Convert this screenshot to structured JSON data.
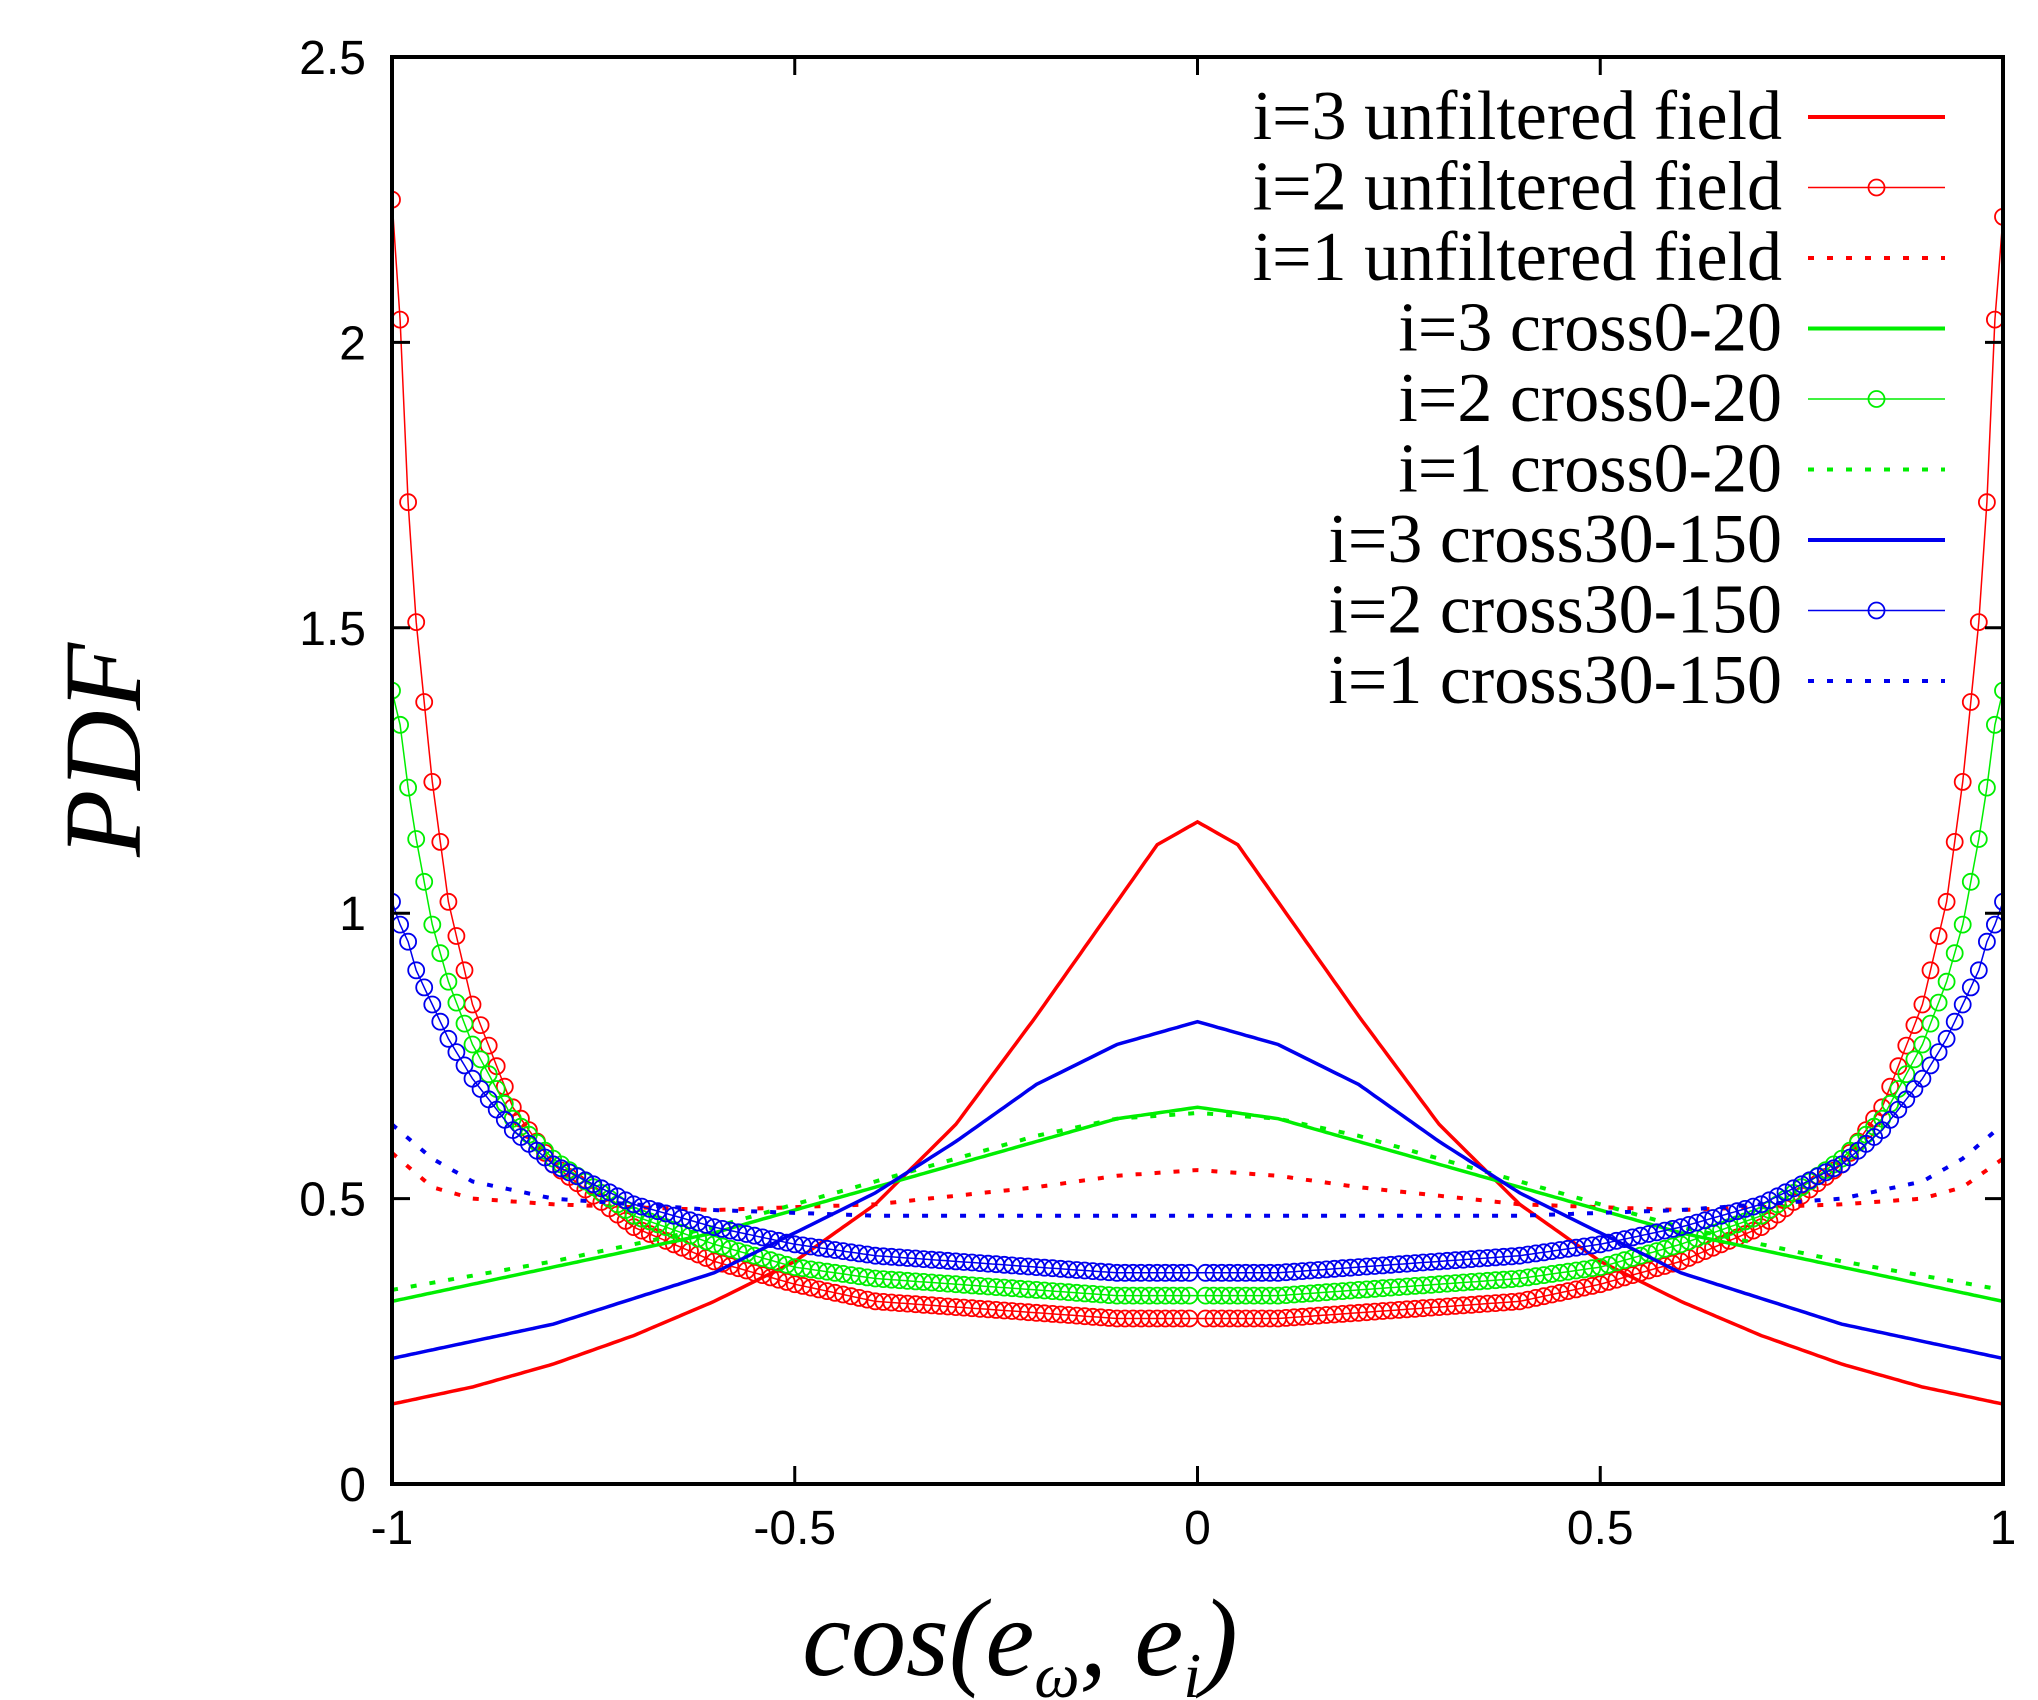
{
  "chart_data": {
    "type": "line",
    "xlabel": "cos(e_ω, e_i)",
    "xlabel_parts": {
      "main": "cos(e",
      "sub1": "ω",
      "mid": ", e",
      "sub2": "i",
      "end": ")"
    },
    "ylabel": "PDF",
    "xlim": [
      -1,
      1
    ],
    "ylim": [
      0,
      2.5
    ],
    "xticks": [
      -1,
      -0.5,
      0,
      0.5,
      1
    ],
    "xtick_labels": [
      "-1",
      "-0.5",
      "0",
      "0.5",
      "1"
    ],
    "yticks": [
      0,
      0.5,
      1,
      1.5,
      2,
      2.5
    ],
    "ytick_labels": [
      "0",
      "0.5",
      "1",
      "1.5",
      "2",
      "2.5"
    ],
    "legend_position": "top-right",
    "grid": false,
    "series": [
      {
        "name": "i=3 unfiltered field",
        "color": "#ff0000",
        "style": "solid",
        "points": [
          [
            -1,
            0.14
          ],
          [
            -0.9,
            0.17
          ],
          [
            -0.8,
            0.21
          ],
          [
            -0.7,
            0.26
          ],
          [
            -0.6,
            0.32
          ],
          [
            -0.5,
            0.39
          ],
          [
            -0.4,
            0.49
          ],
          [
            -0.3,
            0.63
          ],
          [
            -0.2,
            0.82
          ],
          [
            -0.1,
            1.02
          ],
          [
            -0.05,
            1.12
          ],
          [
            0,
            1.16
          ],
          [
            0.05,
            1.12
          ],
          [
            0.1,
            1.02
          ],
          [
            0.2,
            0.82
          ],
          [
            0.3,
            0.63
          ],
          [
            0.4,
            0.49
          ],
          [
            0.5,
            0.39
          ],
          [
            0.6,
            0.32
          ],
          [
            0.7,
            0.26
          ],
          [
            0.8,
            0.21
          ],
          [
            0.9,
            0.17
          ],
          [
            1,
            0.14
          ]
        ]
      },
      {
        "name": "i=2 unfiltered field",
        "color": "#ff0000",
        "style": "circles",
        "points": [
          [
            -1,
            2.25
          ],
          [
            -0.99,
            2.04
          ],
          [
            -0.98,
            1.72
          ],
          [
            -0.97,
            1.51
          ],
          [
            -0.95,
            1.23
          ],
          [
            -0.93,
            1.02
          ],
          [
            -0.9,
            0.84
          ],
          [
            -0.85,
            0.66
          ],
          [
            -0.8,
            0.56
          ],
          [
            -0.7,
            0.45
          ],
          [
            -0.6,
            0.39
          ],
          [
            -0.5,
            0.35
          ],
          [
            -0.4,
            0.32
          ],
          [
            -0.3,
            0.31
          ],
          [
            -0.2,
            0.3
          ],
          [
            -0.1,
            0.29
          ],
          [
            0,
            0.29
          ],
          [
            0.1,
            0.29
          ],
          [
            0.2,
            0.3
          ],
          [
            0.3,
            0.31
          ],
          [
            0.4,
            0.32
          ],
          [
            0.5,
            0.35
          ],
          [
            0.6,
            0.39
          ],
          [
            0.7,
            0.45
          ],
          [
            0.8,
            0.56
          ],
          [
            0.85,
            0.66
          ],
          [
            0.9,
            0.84
          ],
          [
            0.93,
            1.02
          ],
          [
            0.95,
            1.23
          ],
          [
            0.97,
            1.51
          ],
          [
            0.98,
            1.72
          ],
          [
            0.99,
            2.04
          ],
          [
            1,
            2.22
          ]
        ]
      },
      {
        "name": "i=1 unfiltered field",
        "color": "#ff0000",
        "style": "dotted",
        "points": [
          [
            -1,
            0.58
          ],
          [
            -0.95,
            0.52
          ],
          [
            -0.9,
            0.5
          ],
          [
            -0.8,
            0.49
          ],
          [
            -0.6,
            0.48
          ],
          [
            -0.4,
            0.49
          ],
          [
            -0.2,
            0.52
          ],
          [
            -0.1,
            0.54
          ],
          [
            0,
            0.55
          ],
          [
            0.1,
            0.54
          ],
          [
            0.2,
            0.52
          ],
          [
            0.4,
            0.49
          ],
          [
            0.6,
            0.48
          ],
          [
            0.8,
            0.49
          ],
          [
            0.9,
            0.5
          ],
          [
            0.95,
            0.52
          ],
          [
            1,
            0.57
          ]
        ]
      },
      {
        "name": "i=3 cross0-20",
        "color": "#00ee00",
        "style": "solid",
        "points": [
          [
            -1,
            0.32
          ],
          [
            -0.8,
            0.38
          ],
          [
            -0.6,
            0.44
          ],
          [
            -0.4,
            0.52
          ],
          [
            -0.2,
            0.6
          ],
          [
            -0.1,
            0.64
          ],
          [
            0,
            0.66
          ],
          [
            0.1,
            0.64
          ],
          [
            0.2,
            0.6
          ],
          [
            0.4,
            0.52
          ],
          [
            0.6,
            0.44
          ],
          [
            0.8,
            0.38
          ],
          [
            1,
            0.32
          ]
        ]
      },
      {
        "name": "i=2 cross0-20",
        "color": "#00ee00",
        "style": "circles",
        "points": [
          [
            -1,
            1.39
          ],
          [
            -0.99,
            1.33
          ],
          [
            -0.98,
            1.22
          ],
          [
            -0.97,
            1.13
          ],
          [
            -0.95,
            0.98
          ],
          [
            -0.93,
            0.88
          ],
          [
            -0.9,
            0.77
          ],
          [
            -0.85,
            0.64
          ],
          [
            -0.8,
            0.57
          ],
          [
            -0.7,
            0.47
          ],
          [
            -0.6,
            0.42
          ],
          [
            -0.5,
            0.38
          ],
          [
            -0.4,
            0.36
          ],
          [
            -0.3,
            0.35
          ],
          [
            -0.2,
            0.34
          ],
          [
            -0.1,
            0.33
          ],
          [
            0,
            0.33
          ],
          [
            0.1,
            0.33
          ],
          [
            0.2,
            0.34
          ],
          [
            0.3,
            0.35
          ],
          [
            0.4,
            0.36
          ],
          [
            0.5,
            0.38
          ],
          [
            0.6,
            0.42
          ],
          [
            0.7,
            0.47
          ],
          [
            0.8,
            0.57
          ],
          [
            0.85,
            0.64
          ],
          [
            0.9,
            0.77
          ],
          [
            0.93,
            0.88
          ],
          [
            0.95,
            0.98
          ],
          [
            0.97,
            1.13
          ],
          [
            0.98,
            1.22
          ],
          [
            0.99,
            1.33
          ],
          [
            1,
            1.39
          ]
        ]
      },
      {
        "name": "i=1 cross0-20",
        "color": "#00ee00",
        "style": "dotted",
        "points": [
          [
            -1,
            0.34
          ],
          [
            -0.8,
            0.39
          ],
          [
            -0.6,
            0.45
          ],
          [
            -0.4,
            0.53
          ],
          [
            -0.2,
            0.61
          ],
          [
            -0.1,
            0.64
          ],
          [
            0,
            0.65
          ],
          [
            0.1,
            0.64
          ],
          [
            0.2,
            0.61
          ],
          [
            0.4,
            0.53
          ],
          [
            0.6,
            0.45
          ],
          [
            0.8,
            0.39
          ],
          [
            1,
            0.34
          ]
        ]
      },
      {
        "name": "i=3 cross30-150",
        "color": "#0000ee",
        "style": "solid",
        "points": [
          [
            -1,
            0.22
          ],
          [
            -0.8,
            0.28
          ],
          [
            -0.6,
            0.37
          ],
          [
            -0.4,
            0.51
          ],
          [
            -0.3,
            0.6
          ],
          [
            -0.2,
            0.7
          ],
          [
            -0.1,
            0.77
          ],
          [
            0,
            0.81
          ],
          [
            0.1,
            0.77
          ],
          [
            0.2,
            0.7
          ],
          [
            0.3,
            0.6
          ],
          [
            0.4,
            0.51
          ],
          [
            0.6,
            0.37
          ],
          [
            0.8,
            0.28
          ],
          [
            1,
            0.22
          ]
        ]
      },
      {
        "name": "i=2 cross30-150",
        "color": "#0000ee",
        "style": "circles",
        "points": [
          [
            -1,
            1.02
          ],
          [
            -0.99,
            0.98
          ],
          [
            -0.98,
            0.95
          ],
          [
            -0.97,
            0.9
          ],
          [
            -0.95,
            0.84
          ],
          [
            -0.93,
            0.78
          ],
          [
            -0.9,
            0.71
          ],
          [
            -0.85,
            0.62
          ],
          [
            -0.8,
            0.56
          ],
          [
            -0.7,
            0.49
          ],
          [
            -0.6,
            0.45
          ],
          [
            -0.5,
            0.42
          ],
          [
            -0.4,
            0.4
          ],
          [
            -0.3,
            0.39
          ],
          [
            -0.2,
            0.38
          ],
          [
            -0.1,
            0.37
          ],
          [
            0,
            0.37
          ],
          [
            0.1,
            0.37
          ],
          [
            0.2,
            0.38
          ],
          [
            0.3,
            0.39
          ],
          [
            0.4,
            0.4
          ],
          [
            0.5,
            0.42
          ],
          [
            0.6,
            0.45
          ],
          [
            0.7,
            0.49
          ],
          [
            0.8,
            0.56
          ],
          [
            0.85,
            0.62
          ],
          [
            0.9,
            0.71
          ],
          [
            0.93,
            0.78
          ],
          [
            0.95,
            0.84
          ],
          [
            0.97,
            0.9
          ],
          [
            0.98,
            0.95
          ],
          [
            0.99,
            0.98
          ],
          [
            1,
            1.02
          ]
        ]
      },
      {
        "name": "i=1 cross30-150",
        "color": "#0000ee",
        "style": "dotted",
        "points": [
          [
            -1,
            0.63
          ],
          [
            -0.95,
            0.57
          ],
          [
            -0.9,
            0.53
          ],
          [
            -0.8,
            0.5
          ],
          [
            -0.6,
            0.48
          ],
          [
            -0.4,
            0.47
          ],
          [
            -0.2,
            0.47
          ],
          [
            0,
            0.47
          ],
          [
            0.2,
            0.47
          ],
          [
            0.4,
            0.47
          ],
          [
            0.6,
            0.48
          ],
          [
            0.8,
            0.5
          ],
          [
            0.9,
            0.53
          ],
          [
            0.95,
            0.57
          ],
          [
            1,
            0.63
          ]
        ]
      }
    ]
  }
}
